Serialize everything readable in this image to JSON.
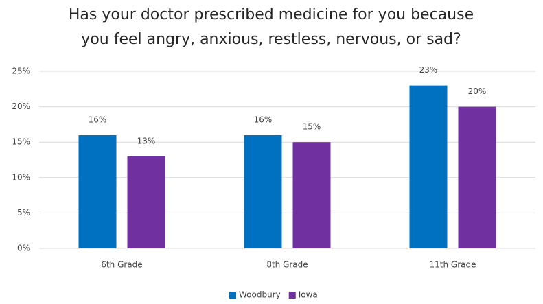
{
  "chart_data": {
    "type": "bar",
    "title": [
      "Has your doctor prescribed medicine for you because",
      "you feel angry, anxious, restless, nervous, or sad?"
    ],
    "categories": [
      "6th Grade",
      "8th Grade",
      "11th Grade"
    ],
    "series": [
      {
        "name": "Woodbury",
        "color": "#0070c0",
        "values": [
          16,
          16,
          23
        ],
        "value_labels": [
          "16%",
          "16%",
          "23%"
        ]
      },
      {
        "name": "Iowa",
        "color": "#7030a0",
        "values": [
          13,
          15,
          20
        ],
        "value_labels": [
          "13%",
          "15%",
          "20%"
        ]
      }
    ],
    "ylim": [
      0,
      25
    ],
    "yticks": [
      {
        "value": 0,
        "label": "0%"
      },
      {
        "value": 5,
        "label": "5%"
      },
      {
        "value": 10,
        "label": "10%"
      },
      {
        "value": 15,
        "label": "15%"
      },
      {
        "value": 20,
        "label": "20%"
      },
      {
        "value": 25,
        "label": "25%"
      }
    ],
    "grid": true,
    "legend": "bottom"
  }
}
